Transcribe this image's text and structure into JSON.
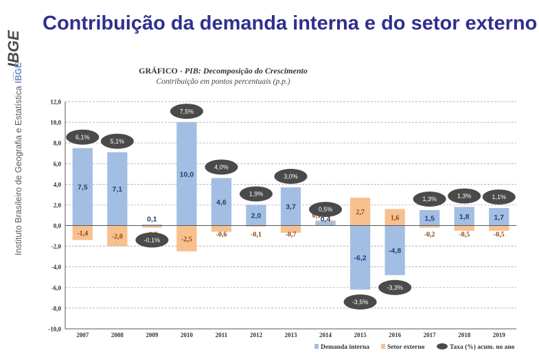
{
  "page": {
    "title": "Contribuição da demanda interna e do setor externo",
    "logo_text": "IBGE",
    "institute": "Instituto Brasileiro de Geografia e Estatística",
    "institute_abbrev": "IBGE"
  },
  "colors": {
    "title": "#2f2f8f",
    "demanda": "#a3bee3",
    "setor": "#f7c08f",
    "taxa": "#4a4a4a",
    "demanda_label": "#1f3f78",
    "setor_label": "#8f3f0f"
  },
  "chart_data": {
    "type": "bar",
    "title": "GRÁFICO - PIB: Decomposição do Crescimento",
    "title_prefix": "GRÁFICO",
    "title_main": "PIB: Decomposição do Crescimento",
    "subtitle": "Contribuição em pontos percentuais (p.p.)",
    "categories": [
      "2007",
      "2008",
      "2009",
      "2010",
      "2011",
      "2012",
      "2013",
      "2014",
      "2015",
      "2016",
      "2017",
      "2018",
      "2019"
    ],
    "ylim": [
      -10,
      12
    ],
    "yticks": [
      "12,0",
      "10,0",
      "8,0",
      "6,0",
      "4,0",
      "2,0",
      "0,0",
      "-2,0",
      "-4,0",
      "-6,0",
      "-8,0",
      "-10,0"
    ],
    "grid": true,
    "legend_position": "bottom-right",
    "series": [
      {
        "name": "Demanda interna",
        "values": [
          7.5,
          7.1,
          0.1,
          10.0,
          4.6,
          2.0,
          3.7,
          0.4,
          -6.2,
          -4.8,
          1.5,
          1.8,
          1.7
        ],
        "labels": [
          "7,5",
          "7,1",
          "0,1",
          "10,0",
          "4,6",
          "2,0",
          "3,7",
          "0,4",
          "-6,2",
          "-4,8",
          "1,5",
          "1,8",
          "1,7"
        ]
      },
      {
        "name": "Setor externo",
        "values": [
          -1.4,
          -2.0,
          -0.2,
          -2.5,
          -0.6,
          -0.1,
          -0.7,
          0.1,
          2.7,
          1.6,
          -0.2,
          -0.5,
          -0.5
        ],
        "labels": [
          "-1,4",
          "-2,0",
          "-0,2",
          "-2,5",
          "-0,6",
          "-0,1",
          "-0,7",
          "0,1",
          "2,7",
          "1,6",
          "-0,2",
          "-0,5",
          "-0,5"
        ]
      },
      {
        "name": "Taxa (%) acum. no ano",
        "values": [
          6.1,
          5.1,
          -0.1,
          7.5,
          4.0,
          1.9,
          3.0,
          0.5,
          -3.5,
          -3.3,
          1.3,
          1.3,
          1.1
        ],
        "labels": [
          "6,1%",
          "5,1%",
          "-0,1%",
          "7,5%",
          "4,0%",
          "1,9%",
          "3,0%",
          "0,5%",
          "-3,5%",
          "-3,3%",
          "1,3%",
          "1,3%",
          "1,1%"
        ]
      }
    ]
  }
}
